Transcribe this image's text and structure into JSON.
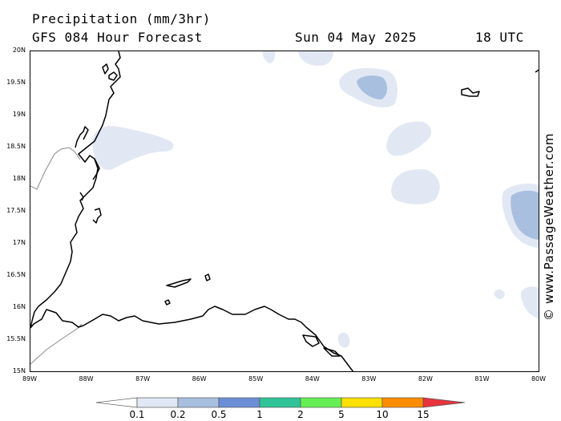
{
  "header": {
    "title": "Precipitation (mm/3hr)",
    "subtitle": "GFS 084 Hour Forecast",
    "date": "Sun 04 May 2025",
    "time": "18 UTC"
  },
  "map": {
    "lat_labels": [
      "20N",
      "19.5N",
      "19N",
      "18.5N",
      "18N",
      "17.5N",
      "17N",
      "16.5N",
      "16N",
      "15.5N",
      "15N"
    ],
    "lon_labels": [
      "89W",
      "88W",
      "87W",
      "86W",
      "85W",
      "84W",
      "83W",
      "82W",
      "81W",
      "80W"
    ],
    "lat_range": [
      15,
      20
    ],
    "lon_range": [
      -89,
      -80
    ],
    "land_color": "#ffffff",
    "coast_color": "#000000",
    "border_color": "#888888"
  },
  "brand": "© www.PassageWeather.com",
  "legend": {
    "labels": [
      "0.1",
      "0.2",
      "0.5",
      "1",
      "2",
      "5",
      "10",
      "15"
    ],
    "colors": [
      "#ffffff",
      "#e0e8f5",
      "#a9bfe0",
      "#6b8fd6",
      "#2fc497",
      "#66ee55",
      "#ffe000",
      "#ff8c00",
      "#e8343c"
    ]
  },
  "precip_colors": {
    "light": "#e1e8f4",
    "medium": "#a9bfe0"
  }
}
